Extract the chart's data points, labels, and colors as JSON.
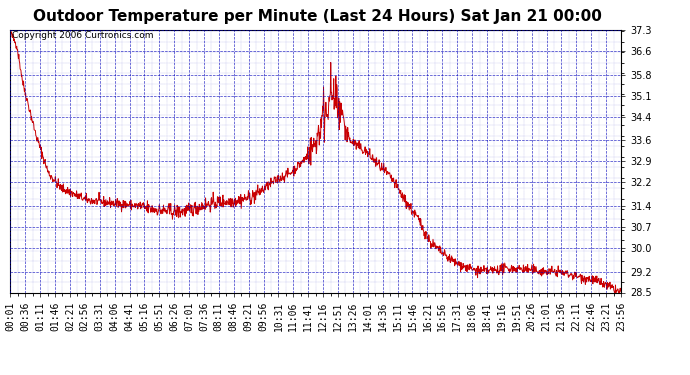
{
  "title": "Outdoor Temperature per Minute (Last 24 Hours) Sat Jan 21 00:00",
  "copyright": "Copyright 2006 Curtronics.com",
  "y_ticks": [
    28.5,
    29.2,
    30.0,
    30.7,
    31.4,
    32.2,
    32.9,
    33.6,
    34.4,
    35.1,
    35.8,
    36.6,
    37.3
  ],
  "ylim": [
    28.5,
    37.3
  ],
  "x_tick_labels": [
    "00:01",
    "00:36",
    "01:11",
    "01:46",
    "02:21",
    "02:56",
    "03:31",
    "04:06",
    "04:41",
    "05:16",
    "05:51",
    "06:26",
    "07:01",
    "07:36",
    "08:11",
    "08:46",
    "09:21",
    "09:56",
    "10:31",
    "11:06",
    "11:41",
    "12:16",
    "12:51",
    "13:26",
    "14:01",
    "14:36",
    "15:11",
    "15:46",
    "16:21",
    "16:56",
    "17:31",
    "18:06",
    "18:41",
    "19:16",
    "19:51",
    "20:26",
    "21:01",
    "21:36",
    "22:11",
    "22:46",
    "23:21",
    "23:56"
  ],
  "line_color": "#cc0000",
  "grid_color": "#0000bb",
  "background_color": "#ffffff",
  "title_fontsize": 11,
  "annotation_fontsize": 6.5,
  "tick_fontsize": 7,
  "curve_keypoints": [
    [
      0,
      37.2
    ],
    [
      15,
      36.8
    ],
    [
      30,
      35.5
    ],
    [
      60,
      33.8
    ],
    [
      90,
      32.5
    ],
    [
      120,
      32.0
    ],
    [
      150,
      31.8
    ],
    [
      180,
      31.6
    ],
    [
      210,
      31.55
    ],
    [
      240,
      31.5
    ],
    [
      270,
      31.45
    ],
    [
      300,
      31.4
    ],
    [
      330,
      31.3
    ],
    [
      360,
      31.25
    ],
    [
      390,
      31.2
    ],
    [
      420,
      31.25
    ],
    [
      450,
      31.4
    ],
    [
      480,
      31.5
    ],
    [
      510,
      31.55
    ],
    [
      540,
      31.6
    ],
    [
      570,
      31.7
    ],
    [
      600,
      32.0
    ],
    [
      630,
      32.3
    ],
    [
      660,
      32.5
    ],
    [
      690,
      32.9
    ],
    [
      720,
      33.5
    ],
    [
      735,
      34.2
    ],
    [
      750,
      34.8
    ],
    [
      755,
      35.3
    ],
    [
      760,
      35.1
    ],
    [
      765,
      34.8
    ],
    [
      770,
      35.0
    ],
    [
      775,
      34.5
    ],
    [
      780,
      34.3
    ],
    [
      790,
      34.0
    ],
    [
      800,
      33.6
    ],
    [
      820,
      33.4
    ],
    [
      840,
      33.2
    ],
    [
      860,
      32.9
    ],
    [
      880,
      32.6
    ],
    [
      900,
      32.3
    ],
    [
      930,
      31.6
    ],
    [
      960,
      31.0
    ],
    [
      990,
      30.2
    ],
    [
      1020,
      29.8
    ],
    [
      1050,
      29.5
    ],
    [
      1080,
      29.3
    ],
    [
      1110,
      29.2
    ],
    [
      1140,
      29.25
    ],
    [
      1170,
      29.3
    ],
    [
      1200,
      29.3
    ],
    [
      1230,
      29.25
    ],
    [
      1260,
      29.2
    ],
    [
      1290,
      29.2
    ],
    [
      1320,
      29.1
    ],
    [
      1350,
      29.0
    ],
    [
      1380,
      28.9
    ],
    [
      1410,
      28.7
    ],
    [
      1440,
      28.5
    ]
  ]
}
